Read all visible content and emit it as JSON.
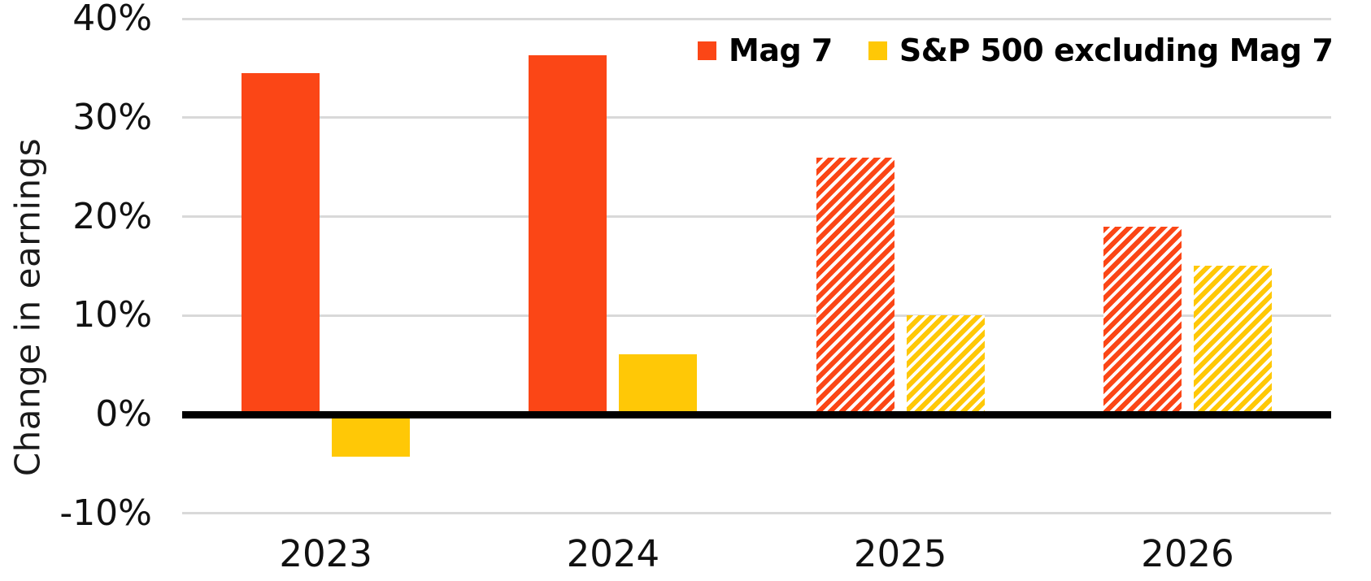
{
  "chart_data": {
    "type": "bar",
    "title": "",
    "xlabel": "",
    "ylabel": "Change in earnings",
    "categories": [
      "2023",
      "2024",
      "2025",
      "2026"
    ],
    "series": [
      {
        "name": "Mag 7",
        "color": "#fb4616",
        "values": [
          34.5,
          36.3,
          26,
          19
        ],
        "hatched": [
          false,
          false,
          true,
          true
        ]
      },
      {
        "name": "S&P 500 excluding Mag 7",
        "color": "#ffc806",
        "values": [
          -4.3,
          6.1,
          10,
          15
        ],
        "hatched": [
          false,
          false,
          true,
          true
        ]
      }
    ],
    "ytick_values": [
      40,
      30,
      20,
      10,
      0,
      -10
    ],
    "ytick_labels": [
      "40%",
      "30%",
      "20%",
      "10%",
      "0%",
      "-10%"
    ],
    "ylim": [
      -10,
      40
    ],
    "grid": true,
    "gridline_color": "#d9d9d9",
    "zero_axis_color": "#000000",
    "legend_position": "top-right",
    "hatched_categories": [
      "2025",
      "2026"
    ]
  }
}
